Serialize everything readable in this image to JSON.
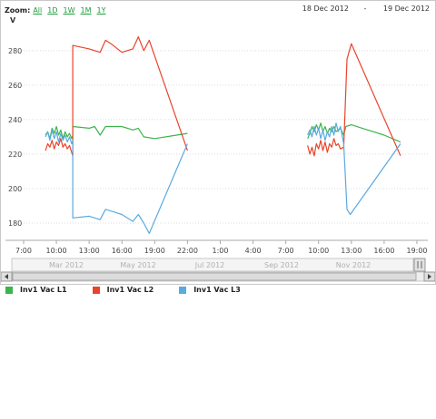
{
  "zoom": {
    "label": "Zoom:",
    "buttons": [
      "All",
      "1D",
      "1W",
      "1M",
      "1Y"
    ]
  },
  "range": {
    "from": "18 Dec 2012",
    "separator": "-",
    "to": "19 Dec 2012"
  },
  "chart_data": {
    "type": "line",
    "title": "",
    "ylabel": "V",
    "ylim": [
      170,
      292
    ],
    "yticks": [
      180,
      200,
      220,
      240,
      260,
      280
    ],
    "x_tick_labels": [
      "7:00",
      "10:00",
      "13:00",
      "16:00",
      "19:00",
      "22:00",
      "1:00",
      "4:00",
      "7:00",
      "10:00",
      "13:00",
      "16:00",
      "19:00"
    ],
    "grid": true,
    "legend_position": "bottom-left",
    "navigator_labels": [
      "Mar 2012",
      "May 2012",
      "Jul 2012",
      "Sep 2012",
      "Nov 2012"
    ],
    "series": [
      {
        "name": "Inv1 Vac L1",
        "color": "#3cb44b",
        "segments": [
          [
            [
              9.0,
              231
            ],
            [
              9.2,
              233
            ],
            [
              9.4,
              229
            ],
            [
              9.6,
              235
            ],
            [
              9.8,
              232
            ],
            [
              10.0,
              236
            ],
            [
              10.2,
              231
            ],
            [
              10.4,
              234
            ],
            [
              10.6,
              229
            ],
            [
              10.8,
              233
            ],
            [
              11.0,
              230
            ],
            [
              11.2,
              232
            ],
            [
              11.4,
              229
            ],
            [
              11.5,
              231
            ],
            [
              11.5,
              236
            ],
            [
              13.0,
              235
            ],
            [
              13.5,
              236
            ],
            [
              14.0,
              231
            ],
            [
              14.5,
              236
            ],
            [
              15.0,
              236
            ],
            [
              16.0,
              236
            ],
            [
              17.0,
              234
            ],
            [
              17.5,
              235
            ],
            [
              18.0,
              230
            ],
            [
              19.0,
              229
            ],
            [
              21.0,
              231
            ],
            [
              22.0,
              232
            ]
          ],
          [
            [
              33.0,
              229
            ],
            [
              33.2,
              232
            ],
            [
              33.4,
              236
            ],
            [
              33.6,
              233
            ],
            [
              33.8,
              237
            ],
            [
              34.0,
              234
            ],
            [
              34.2,
              238
            ],
            [
              34.4,
              233
            ],
            [
              34.6,
              236
            ],
            [
              34.8,
              232
            ],
            [
              35.0,
              235
            ],
            [
              35.2,
              233
            ],
            [
              35.4,
              236
            ],
            [
              35.6,
              233
            ],
            [
              36.0,
              235
            ],
            [
              36.3,
              231
            ],
            [
              36.5,
              236
            ],
            [
              37.0,
              237
            ],
            [
              38.0,
              235
            ],
            [
              39.0,
              233
            ],
            [
              40.0,
              231
            ],
            [
              41.5,
              227
            ]
          ]
        ]
      },
      {
        "name": "Inv1 Vac L2",
        "color": "#e8442b",
        "segments": [
          [
            [
              9.0,
              222
            ],
            [
              9.2,
              226
            ],
            [
              9.4,
              224
            ],
            [
              9.6,
              228
            ],
            [
              9.8,
              223
            ],
            [
              10.0,
              227
            ],
            [
              10.2,
              225
            ],
            [
              10.4,
              229
            ],
            [
              10.6,
              224
            ],
            [
              10.8,
              226
            ],
            [
              11.0,
              223
            ],
            [
              11.2,
              225
            ],
            [
              11.4,
              221
            ],
            [
              11.5,
              219
            ],
            [
              11.5,
              283
            ],
            [
              13.0,
              281
            ],
            [
              14.0,
              279
            ],
            [
              14.5,
              286
            ],
            [
              15.0,
              284
            ],
            [
              16.0,
              279
            ],
            [
              17.0,
              281
            ],
            [
              17.5,
              288
            ],
            [
              18.0,
              280
            ],
            [
              18.5,
              286
            ],
            [
              22.0,
              222
            ]
          ],
          [
            [
              33.0,
              225
            ],
            [
              33.2,
              220
            ],
            [
              33.4,
              224
            ],
            [
              33.6,
              219
            ],
            [
              33.8,
              226
            ],
            [
              34.0,
              223
            ],
            [
              34.2,
              228
            ],
            [
              34.4,
              222
            ],
            [
              34.6,
              227
            ],
            [
              34.8,
              221
            ],
            [
              35.0,
              226
            ],
            [
              35.2,
              224
            ],
            [
              35.4,
              229
            ],
            [
              35.6,
              225
            ],
            [
              35.8,
              226
            ],
            [
              36.0,
              223
            ],
            [
              36.3,
              224
            ],
            [
              36.6,
              275
            ],
            [
              37.0,
              284
            ],
            [
              41.5,
              219
            ]
          ]
        ]
      },
      {
        "name": "Inv1 Vac L3",
        "color": "#5aaadf",
        "segments": [
          [
            [
              9.0,
              230
            ],
            [
              9.2,
              233
            ],
            [
              9.4,
              228
            ],
            [
              9.6,
              234
            ],
            [
              9.8,
              229
            ],
            [
              10.0,
              233
            ],
            [
              10.2,
              227
            ],
            [
              10.4,
              232
            ],
            [
              10.6,
              228
            ],
            [
              10.8,
              231
            ],
            [
              11.0,
              227
            ],
            [
              11.2,
              230
            ],
            [
              11.4,
              226
            ],
            [
              11.5,
              228
            ],
            [
              11.5,
              183
            ],
            [
              13.0,
              184
            ],
            [
              14.0,
              182
            ],
            [
              14.5,
              188
            ],
            [
              15.0,
              187
            ],
            [
              16.0,
              185
            ],
            [
              17.0,
              181
            ],
            [
              17.5,
              185
            ],
            [
              18.0,
              180
            ],
            [
              18.5,
              174
            ],
            [
              22.0,
              226
            ]
          ],
          [
            [
              33.0,
              231
            ],
            [
              33.2,
              234
            ],
            [
              33.4,
              230
            ],
            [
              33.6,
              236
            ],
            [
              33.8,
              231
            ],
            [
              34.0,
              235
            ],
            [
              34.2,
              229
            ],
            [
              34.4,
              234
            ],
            [
              34.6,
              228
            ],
            [
              34.8,
              233
            ],
            [
              35.0,
              230
            ],
            [
              35.2,
              236
            ],
            [
              35.4,
              231
            ],
            [
              35.6,
              238
            ],
            [
              35.8,
              233
            ],
            [
              36.0,
              236
            ],
            [
              36.3,
              226
            ],
            [
              36.6,
              188
            ],
            [
              36.9,
              185
            ],
            [
              41.5,
              226
            ]
          ]
        ]
      }
    ]
  }
}
